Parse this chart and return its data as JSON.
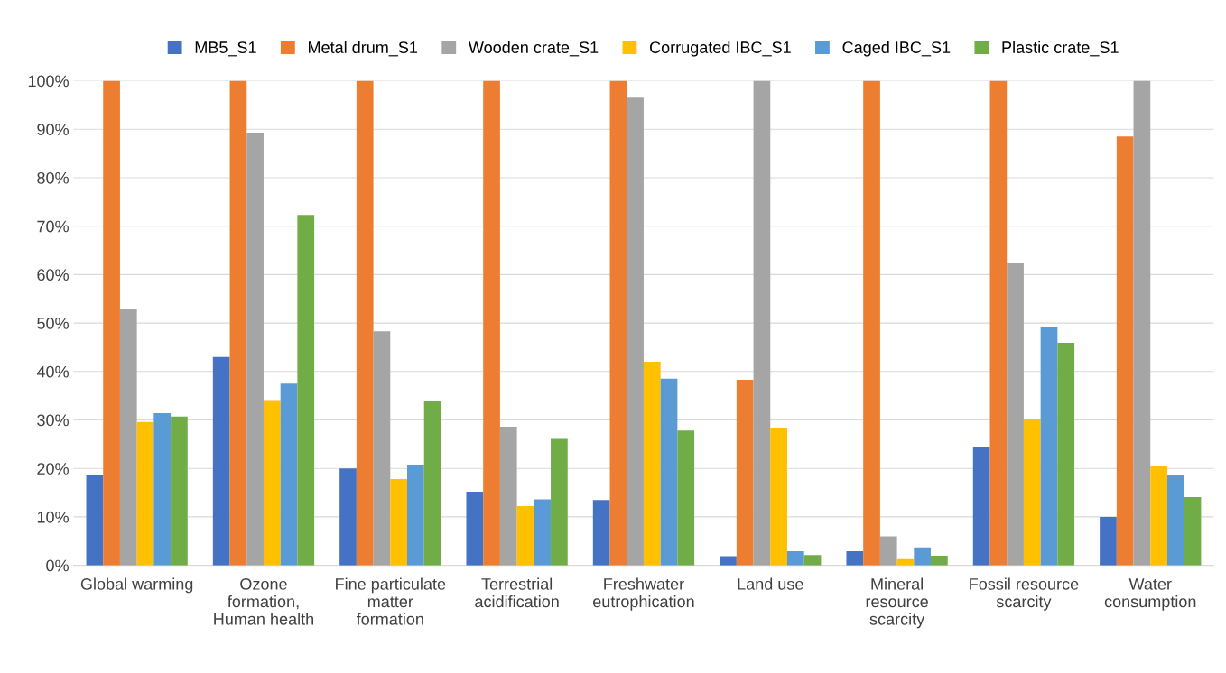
{
  "chart_data": {
    "type": "bar",
    "categories": [
      "Global warming",
      "Ozone\nformation,\nHuman health",
      "Fine particulate\nmatter\nformation",
      "Terrestrial\nacidification",
      "Freshwater\neutrophication",
      "Land use",
      "Mineral\nresource\nscarcity",
      "Fossil resource\nscarcity",
      "Water\nconsumption"
    ],
    "series": [
      {
        "name": "MB5_S1",
        "color": "#4472c4",
        "values": [
          18.7,
          43,
          20,
          15.2,
          13.5,
          1.9,
          2.9,
          24.4,
          10
        ]
      },
      {
        "name": "Metal drum_S1",
        "color": "#ed7d31",
        "values": [
          100,
          100,
          100,
          100,
          100,
          38.3,
          100,
          100,
          88.5
        ]
      },
      {
        "name": "Wooden crate_S1",
        "color": "#a5a5a5",
        "values": [
          52.8,
          89.3,
          48.3,
          28.6,
          96.5,
          100,
          6,
          62.4,
          100
        ]
      },
      {
        "name": "Corrugated IBC_S1",
        "color": "#ffc000",
        "values": [
          29.6,
          34.1,
          17.8,
          12.2,
          42,
          28.4,
          1.3,
          30.1,
          20.6
        ]
      },
      {
        "name": "Caged IBC_S1",
        "color": "#5b9bd5",
        "values": [
          31.4,
          37.5,
          20.8,
          13.6,
          38.5,
          2.9,
          3.7,
          49.1,
          18.6
        ]
      },
      {
        "name": "Plastic crate_S1",
        "color": "#70ad47",
        "values": [
          30.7,
          72.3,
          33.8,
          26.1,
          27.8,
          2.1,
          2,
          45.9,
          14.1
        ]
      }
    ],
    "ylim": [
      0,
      100
    ],
    "yticks": [
      {
        "value": 0,
        "label": "0%"
      },
      {
        "value": 10,
        "label": "10%"
      },
      {
        "value": 20,
        "label": "20%"
      },
      {
        "value": 30,
        "label": "30%"
      },
      {
        "value": 40,
        "label": "40%"
      },
      {
        "value": 50,
        "label": "50%"
      },
      {
        "value": 60,
        "label": "60%"
      },
      {
        "value": 70,
        "label": "70%"
      },
      {
        "value": 80,
        "label": "80%"
      },
      {
        "value": 90,
        "label": "90%"
      },
      {
        "value": 100,
        "label": "100%"
      }
    ],
    "grid": "y",
    "legend": "top"
  }
}
